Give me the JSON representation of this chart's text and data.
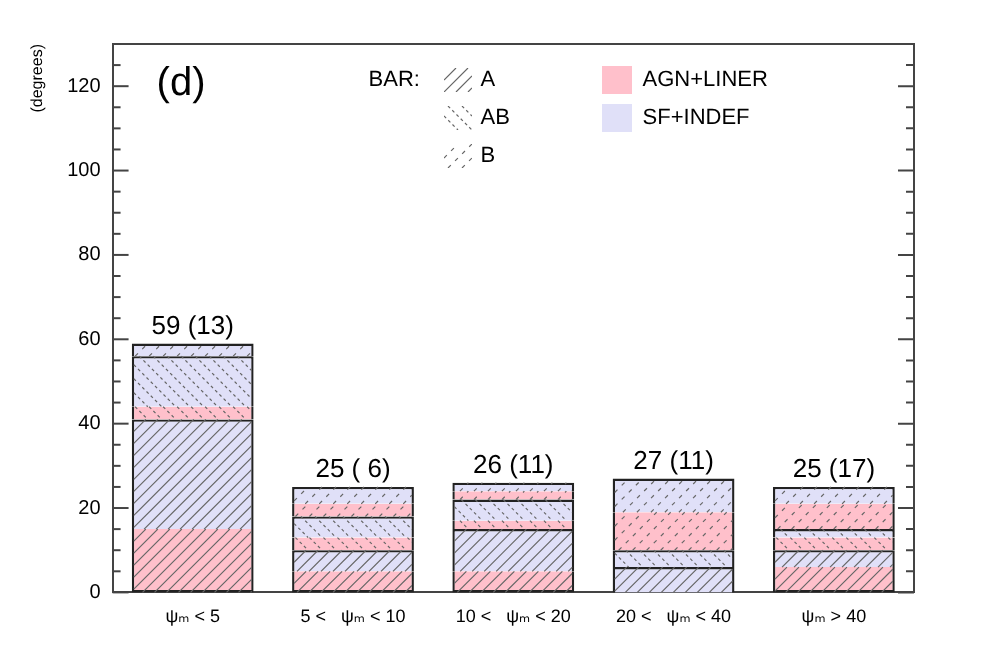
{
  "chart_data": {
    "type": "bar",
    "title": "(d)",
    "ylabel": "(degrees)",
    "categories": [
      "ψₘ < 5",
      "5 <   ψₘ < 10",
      "10 <   ψₘ < 20",
      "20 <   ψₘ < 40",
      "ψₘ > 40"
    ],
    "stacked": true,
    "series": [
      {
        "name": "AGN+LINER",
        "color": "#ffc0cb",
        "values": [
          15,
          5,
          5,
          0,
          6
        ]
      },
      {
        "name": "SF+INDEF",
        "color": "#e0e0f8",
        "values": [
          26,
          5,
          10,
          6,
          4
        ]
      },
      {
        "color": "#ffc0cb",
        "values": [
          3,
          3,
          2,
          0,
          3
        ]
      },
      {
        "color": "#e0e0f8",
        "values": [
          12,
          5,
          5,
          4,
          2
        ]
      },
      {
        "color": "#ffc0cb",
        "values": [
          0,
          3,
          2,
          9,
          6
        ]
      },
      {
        "color": "#e0e0f8",
        "values": [
          3,
          4,
          2,
          8,
          4
        ]
      }
    ],
    "totals": [
      "59 (13)",
      "25 ( 6)",
      "26 (11)",
      "27 (11)",
      "25 (17)"
    ],
    "ylim": [
      0,
      130
    ],
    "yticks": [
      0,
      {
        "value": 5,
        "label": null
      },
      {
        "value": 10,
        "label": null
      },
      {
        "value": 15,
        "label": null
      },
      20,
      {
        "value": 25,
        "label": null
      },
      {
        "value": 30,
        "label": null
      },
      {
        "value": 35,
        "label": null
      },
      40,
      {
        "value": 45,
        "label": null
      },
      {
        "value": 50,
        "label": null
      },
      {
        "value": 55,
        "label": null
      },
      60,
      {
        "value": 65,
        "label": null
      },
      {
        "value": 70,
        "label": null
      },
      {
        "value": 75,
        "label": null
      },
      80,
      {
        "value": 85,
        "label": null
      },
      {
        "value": 90,
        "label": null
      },
      {
        "value": 95,
        "label": null
      },
      100,
      {
        "value": 105,
        "label": null
      },
      {
        "value": 110,
        "label": null
      },
      {
        "value": 115,
        "label": null
      },
      120,
      {
        "value": 125,
        "label": null
      },
      {
        "value": 130,
        "label": null
      }
    ],
    "grid": false,
    "legend": "top",
    "annotations": [
      "BAR:",
      "A",
      "AB",
      "B"
    ]
  }
}
